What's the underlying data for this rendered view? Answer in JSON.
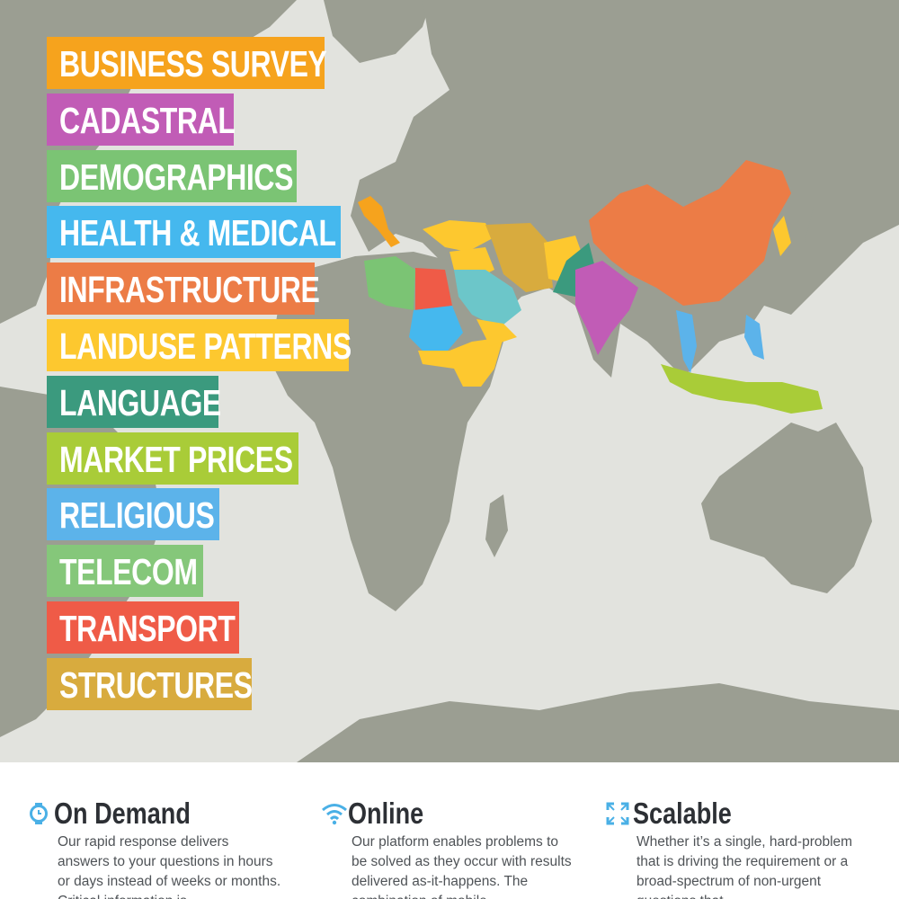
{
  "categories": [
    {
      "label": "BUSINESS SURVEY",
      "color": "#f6a31d"
    },
    {
      "label": "CADASTRAL",
      "color": "#c15cb6"
    },
    {
      "label": "DEMOGRAPHICS",
      "color": "#7bc474"
    },
    {
      "label": "HEALTH & MEDICAL",
      "color": "#45b8ee"
    },
    {
      "label": "INFRASTRUCTURE",
      "color": "#ec7c46"
    },
    {
      "label": "LANDUSE PATTERNS",
      "color": "#fdc82f"
    },
    {
      "label": "LANGUAGE",
      "color": "#3b9a7e"
    },
    {
      "label": "MARKET PRICES",
      "color": "#a9cc38"
    },
    {
      "label": "RELIGIOUS",
      "color": "#5cb3ea"
    },
    {
      "label": "TELECOM",
      "color": "#85c77a"
    },
    {
      "label": "TRANSPORT",
      "color": "#ef5b47"
    },
    {
      "label": "STRUCTURES",
      "color": "#d8ab3e"
    }
  ],
  "features": [
    {
      "title": "On Demand",
      "icon": "watch-icon",
      "icon_color": "#4ab0e6",
      "description": "Our rapid response delivers answers to your questions in hours or days instead of weeks or months. Critical information is"
    },
    {
      "title": "Online",
      "icon": "wifi-icon",
      "icon_color": "#4ab0e6",
      "description": "Our platform enables problems to be solved as they occur with results delivered as-it-happens. The combination of mobile"
    },
    {
      "title": "Scalable",
      "icon": "expand-icon",
      "icon_color": "#4ab0e6",
      "description": "Whether it’s a single, hard-problem that is driving the requirement or a broad-spectrum of non-urgent questions that"
    }
  ],
  "colors": {
    "ocean": "#e2e3de",
    "land": "#9b9e92",
    "feature_text": "#2d3035"
  }
}
